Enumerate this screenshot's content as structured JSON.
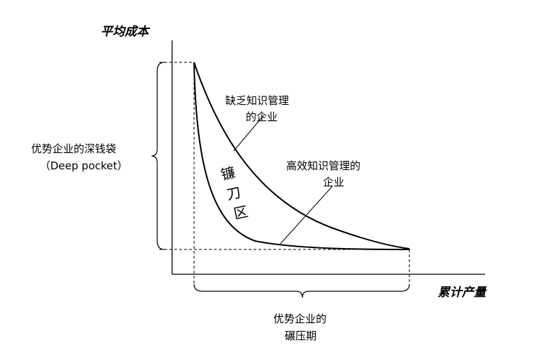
{
  "axes": {
    "y_title": "平均成本",
    "x_title": "累计产量"
  },
  "curves": {
    "inefficient_label_line1": "缺乏知识管理",
    "inefficient_label_line2": "的企业",
    "efficient_label_line1": "高效知识管理的",
    "efficient_label_line2": "企业"
  },
  "region_label": {
    "char1": "镰",
    "char2": "刀",
    "char3": "区"
  },
  "deep_pocket": {
    "line1": "优势企业的深钱袋",
    "line2": "（Deep pocket）"
  },
  "squeeze_period": {
    "line1": "优势企业的",
    "line2": "碾压期"
  }
}
